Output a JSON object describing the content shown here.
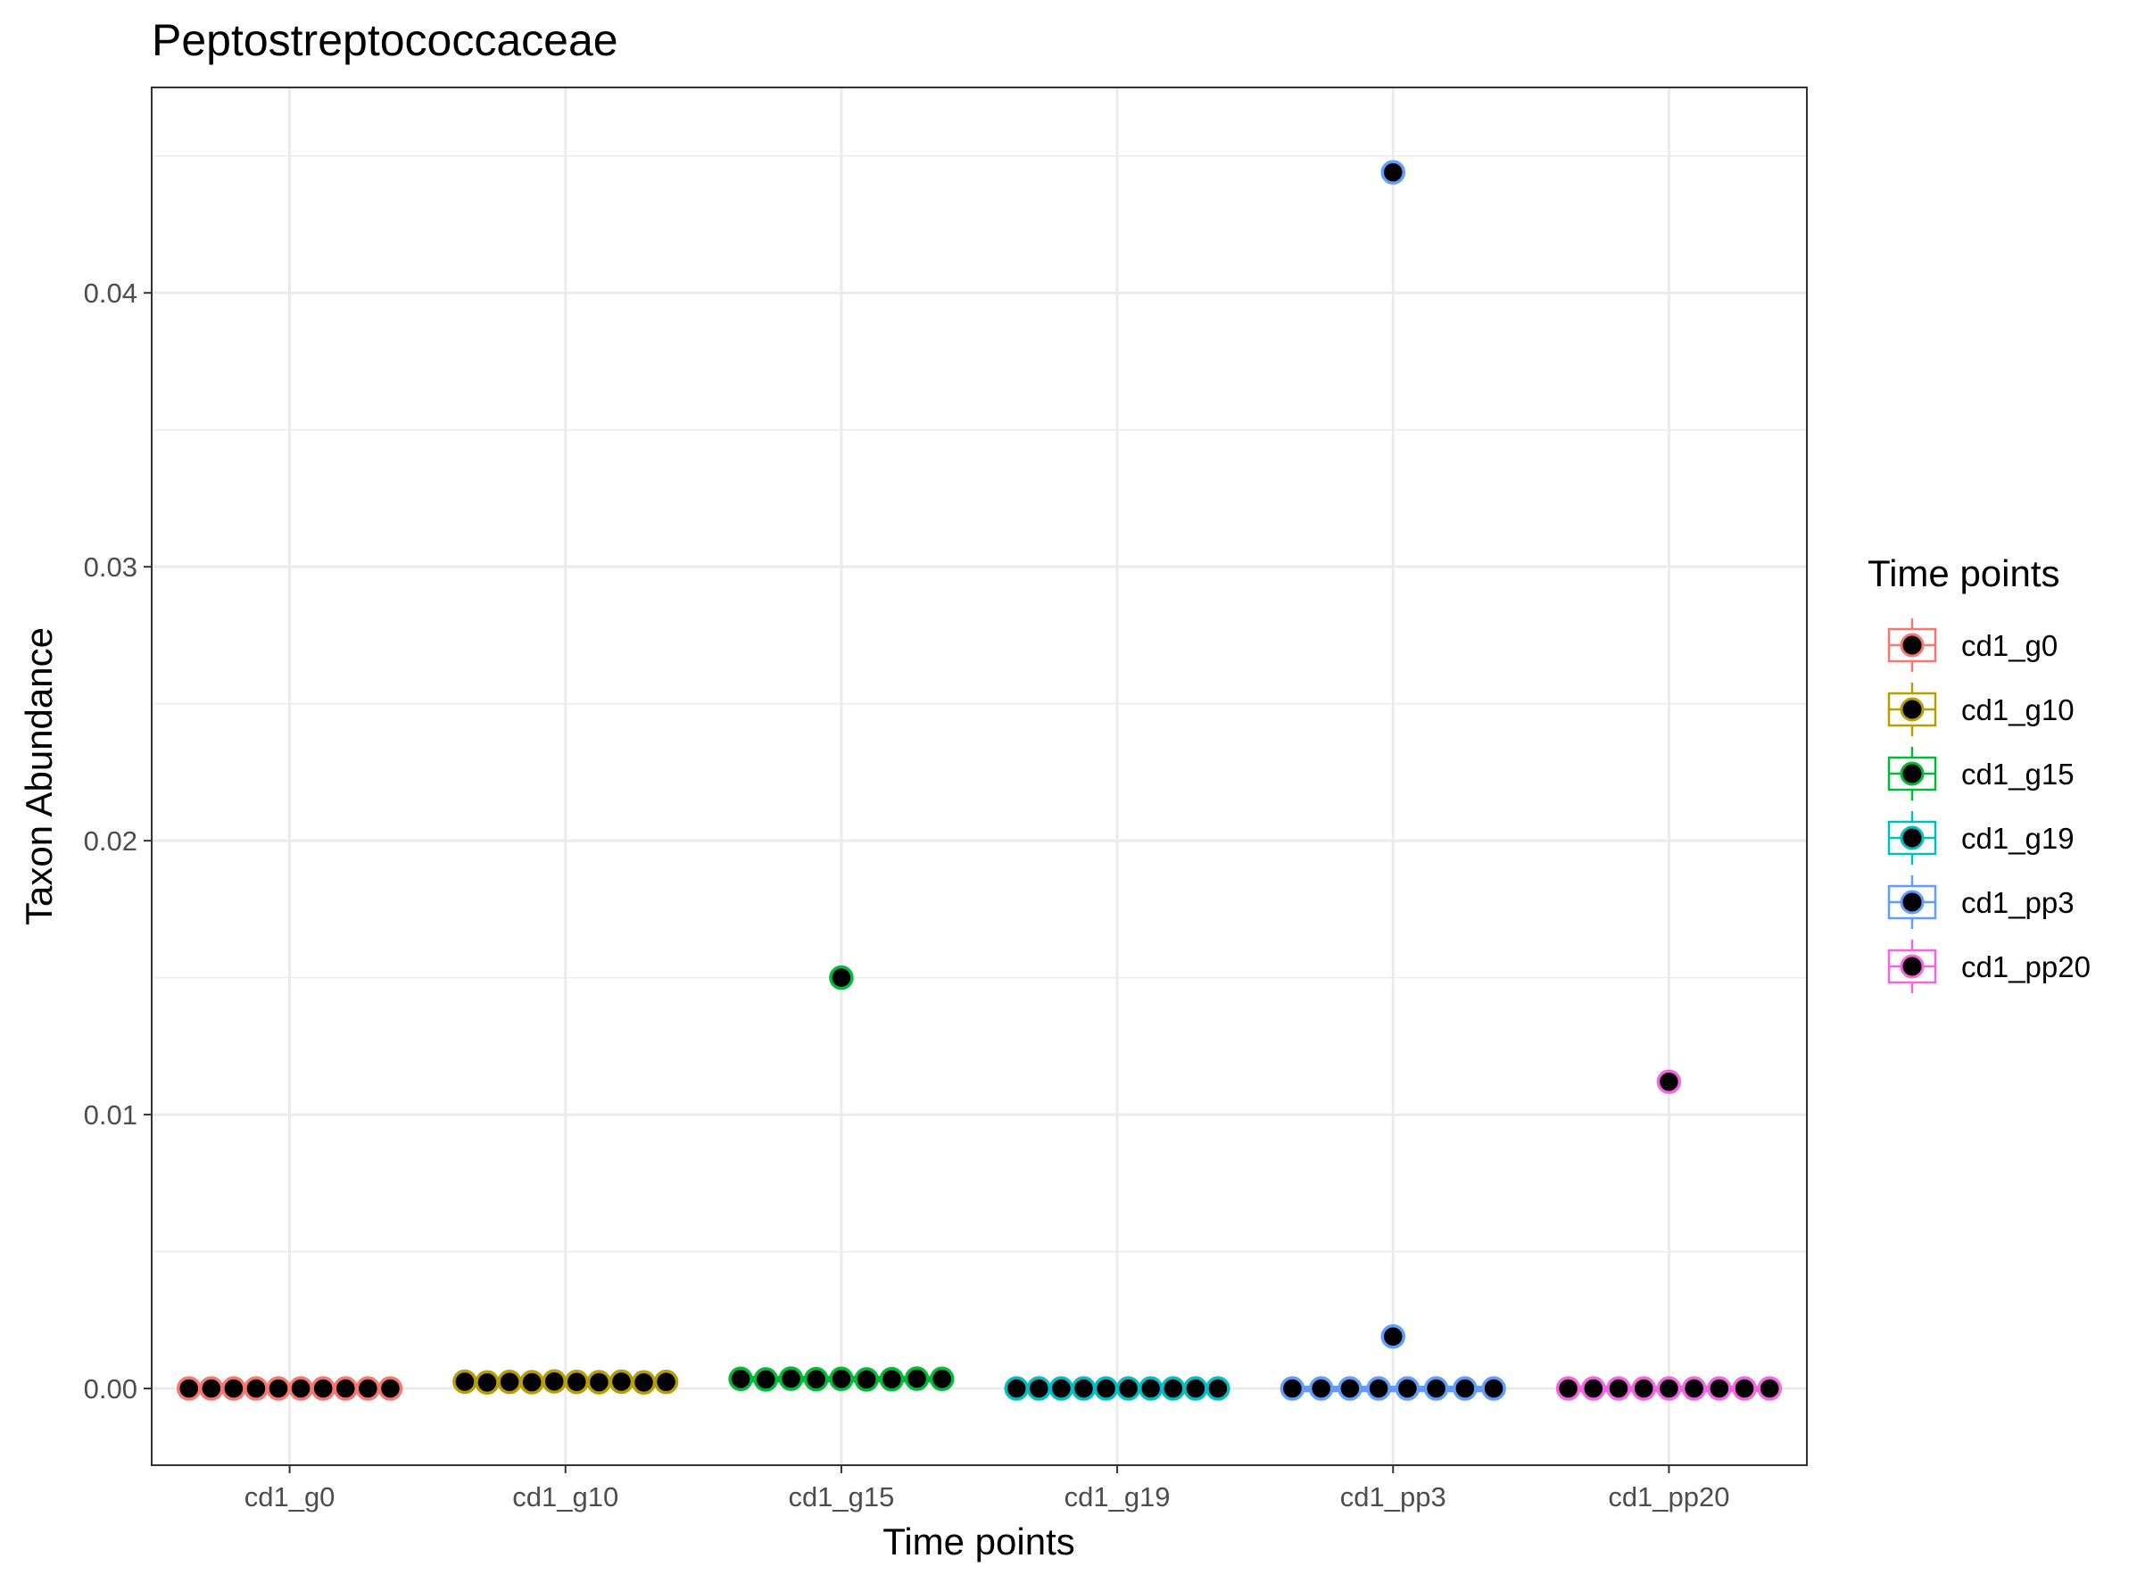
{
  "chart_data": {
    "type": "box-with-jittered-points",
    "title": "Peptostreptococcaceae",
    "xlabel": "Time points",
    "ylabel": "Taxon Abundance",
    "ylim": [
      -0.0028,
      0.0475
    ],
    "y_ticks": [
      0.0,
      0.01,
      0.02,
      0.03,
      0.04
    ],
    "y_tick_labels": [
      "0.00",
      "0.01",
      "0.02",
      "0.03",
      "0.04"
    ],
    "categories": [
      "cd1_g0",
      "cd1_g10",
      "cd1_g15",
      "cd1_g19",
      "cd1_pp3",
      "cd1_pp20"
    ],
    "grid": true,
    "legend": {
      "title": "Time points",
      "position": "right",
      "items": [
        "cd1_g0",
        "cd1_g10",
        "cd1_g15",
        "cd1_g19",
        "cd1_pp3",
        "cd1_pp20"
      ]
    },
    "colors": [
      "#F8766D",
      "#B79F00",
      "#00BA38",
      "#00BFC4",
      "#619CFF",
      "#F564E3"
    ],
    "point_fill": "#000000",
    "series": [
      {
        "name": "cd1_g0",
        "values": [
          0,
          0,
          0,
          0,
          0,
          0,
          0,
          0,
          0,
          0
        ]
      },
      {
        "name": "cd1_g10",
        "values": [
          0.00025,
          0.00022,
          0.00024,
          0.00023,
          0.00026,
          0.00024,
          0.00023,
          0.00025,
          0.00022,
          0.00024
        ]
      },
      {
        "name": "cd1_g15",
        "values": [
          0.00035,
          0.00033,
          0.00036,
          0.00034,
          0.00035,
          0.00033,
          0.00034,
          0.00036,
          0.00035,
          0.015
        ]
      },
      {
        "name": "cd1_g19",
        "values": [
          0,
          0,
          0,
          0,
          0,
          0,
          0,
          0,
          0,
          0
        ]
      },
      {
        "name": "cd1_pp3",
        "values": [
          0,
          0,
          0,
          0,
          0,
          0,
          0,
          0,
          0.0019,
          0.0444
        ]
      },
      {
        "name": "cd1_pp20",
        "values": [
          0,
          0,
          0,
          0,
          0,
          0,
          0,
          0,
          0,
          0.0112
        ]
      }
    ]
  }
}
